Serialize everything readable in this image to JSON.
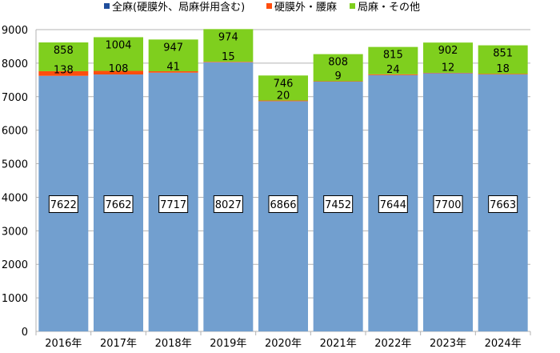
{
  "chart_data": {
    "type": "bar",
    "stacked": true,
    "categories": [
      "2016年",
      "2017年",
      "2018年",
      "2019年",
      "2020年",
      "2021年",
      "2022年",
      "2023年",
      "2024年"
    ],
    "series": [
      {
        "name": "全麻(硬膜外、局麻併用含む)",
        "color": "#729fcf",
        "legend_color": "#1f4e9c",
        "values": [
          7622,
          7662,
          7717,
          8027,
          6866,
          7452,
          7644,
          7700,
          7663
        ]
      },
      {
        "name": "硬膜外・腰麻",
        "color": "#ff4d0d",
        "legend_color": "#ff4d0d",
        "values": [
          138,
          108,
          41,
          15,
          20,
          9,
          24,
          12,
          18
        ]
      },
      {
        "name": "局麻・その他",
        "color": "#7fcf1e",
        "legend_color": "#7fcf1e",
        "values": [
          858,
          1004,
          947,
          974,
          746,
          808,
          815,
          902,
          851
        ]
      }
    ],
    "ylim": [
      0,
      9000
    ],
    "yticks": [
      0,
      1000,
      2000,
      3000,
      4000,
      5000,
      6000,
      7000,
      8000,
      9000
    ],
    "grid": true,
    "legend": "top"
  }
}
